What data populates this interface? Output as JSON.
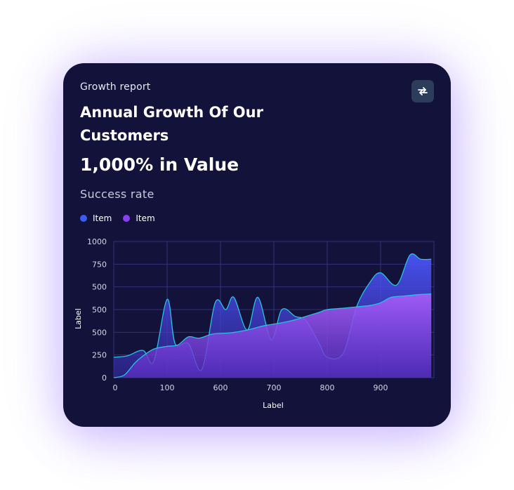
{
  "header": {
    "subtitle": "Growth report",
    "title": "Annual Growth Of Our Customers",
    "value_text": "1,000% in Value",
    "rate_label": "Success rate"
  },
  "colors": {
    "card_bg": "#12123a",
    "series_blue": "#3b5bf5",
    "series_purple": "#8a3ff0",
    "line_cyan": "#27c3e0",
    "button_bg": "#2b3d5a"
  },
  "icons": {
    "swap": "swap-arrows-icon"
  },
  "chart_data": {
    "type": "area",
    "legend": [
      {
        "label": "Item",
        "color": "#3b5bf5"
      },
      {
        "label": "Item",
        "color": "#8a3ff0"
      }
    ],
    "legend_position": "top-left",
    "grid": true,
    "xlabel": "Label",
    "ylabel": "Label",
    "x_tick_labels": [
      "0",
      "100",
      "600",
      "700",
      "800",
      "900"
    ],
    "y_tick_labels": [
      "0",
      "250",
      "500",
      "500",
      "750",
      "1000"
    ],
    "y_tick_labels_top_to_bottom": [
      "1000",
      "750",
      "500",
      "500",
      "500",
      "250",
      "0"
    ],
    "ylim": [
      0,
      1000
    ],
    "x_positions": [
      0,
      1,
      2,
      3,
      4,
      5,
      6
    ],
    "series": [
      {
        "color": "#3b5bf5",
        "x": [
          0,
          0.25,
          0.55,
          0.75,
          1.0,
          1.15,
          1.4,
          1.65,
          1.9,
          2.1,
          2.25,
          2.5,
          2.7,
          2.95,
          3.15,
          3.4,
          3.6,
          3.85,
          4.0,
          4.3,
          4.55,
          4.8,
          5.0,
          5.3,
          5.55,
          5.75,
          5.95
        ],
        "y": [
          150,
          160,
          200,
          120,
          575,
          250,
          250,
          60,
          550,
          500,
          590,
          350,
          590,
          280,
          500,
          450,
          420,
          250,
          150,
          180,
          520,
          700,
          770,
          680,
          900,
          870,
          870
        ]
      },
      {
        "color": "#8a3ff0",
        "x": [
          0,
          0.2,
          0.4,
          0.55,
          0.75,
          1.0,
          1.2,
          1.4,
          1.6,
          1.85,
          2.2,
          2.5,
          2.8,
          3.1,
          3.35,
          3.6,
          3.85,
          4.0,
          4.3,
          4.55,
          4.8,
          5.0,
          5.2,
          5.45,
          5.7,
          5.95
        ],
        "y": [
          0,
          20,
          110,
          160,
          210,
          230,
          240,
          300,
          290,
          320,
          330,
          350,
          380,
          400,
          420,
          450,
          480,
          500,
          510,
          520,
          530,
          550,
          590,
          600,
          610,
          615
        ]
      }
    ]
  }
}
